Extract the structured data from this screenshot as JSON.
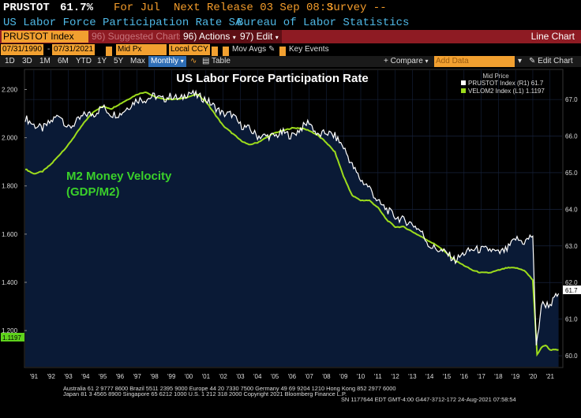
{
  "header": {
    "ticker": "PRUSTOT",
    "last_value": "61.7%",
    "period": "For Jul",
    "next_release": "Next Release 03 Sep 08:3",
    "survey": "Survey --",
    "description": "US Labor Force Participation Rate SA",
    "source": "Bureau of Labor Statistics"
  },
  "toolbar": {
    "ticker_field": "PRUSTOT Index",
    "suggested_charts": "96) Suggested Charts",
    "actions": "96) Actions",
    "edit": "97) Edit",
    "chart_type": "Line Chart"
  },
  "controls": {
    "start_date": "07/31/1990",
    "end_date": "07/31/2021",
    "price_field": "Mid Px",
    "currency": "Local CCY",
    "mov_avgs": "Mov Avgs",
    "key_events": "Key Events"
  },
  "periods": {
    "items": [
      "1D",
      "3D",
      "1M",
      "6M",
      "YTD",
      "1Y",
      "5Y",
      "Max"
    ],
    "frequency": "Monthly",
    "table": "Table",
    "compare": "Compare",
    "add_data_placeholder": "Add Data",
    "edit_chart": "Edit Chart"
  },
  "legend": {
    "header": "Mid Price",
    "entries": [
      {
        "label": "PRUSTOT Index  (R1)  61.7",
        "color": "#ffffff"
      },
      {
        "label": "VELOM2 Index  (L1)    1.1197",
        "color": "#9ddc1c"
      }
    ]
  },
  "annotations": {
    "title": "US Labor Force Participation Rate",
    "green_label_line1": "M2 Money Velocity",
    "green_label_line2": "(GDP/M2)"
  },
  "badges": {
    "right_last": "61.7",
    "left_last": "1.1197"
  },
  "footer": {
    "line1": "Australia 61 2 9777 8600  Brazil 5511 2395 9000  Europe 44 20 7330 7500  Germany 49 69 9204 1210  Hong Kong 852 2977 6000",
    "line2": "Japan 81 3 4565 8900        Singapore 65 6212 1000       U.S. 1 212 318 2000       Copyright 2021 Bloomberg Finance L.P.",
    "line3": "SN 1177644 EDT  GMT-4:00 G447-3712-172 24-Aug-2021 07:58:54"
  },
  "chart_data": {
    "type": "line",
    "title": "US Labor Force Participation Rate",
    "x_tick_labels": [
      "'91",
      "'92",
      "'93",
      "'94",
      "'95",
      "'96",
      "'97",
      "'98",
      "'99",
      "'00",
      "'01",
      "'02",
      "'03",
      "'04",
      "'05",
      "'06",
      "'07",
      "'08",
      "'09",
      "'10",
      "'11",
      "'12",
      "'13",
      "'14",
      "'15",
      "'16",
      "'17",
      "'18",
      "'19",
      "'20",
      "'21"
    ],
    "xlim": [
      1990.5,
      2021.7
    ],
    "y_left": {
      "label": "VELOM2 Index",
      "ylim": [
        1.05,
        2.28
      ],
      "ticks": [
        "1.200",
        "1.400",
        "1.600",
        "1.800",
        "2.000",
        "2.200"
      ]
    },
    "y_right": {
      "label": "PRUSTOT Index",
      "ylim": [
        59.7,
        67.8
      ],
      "ticks": [
        "60.0",
        "61.0",
        "62.0",
        "63.0",
        "64.0",
        "65.0",
        "66.0",
        "67.0"
      ]
    },
    "series": [
      {
        "name": "PRUSTOT Index",
        "axis": "right",
        "color": "#ffffff",
        "points": [
          [
            1990.5,
            66.5
          ],
          [
            1991.0,
            66.3
          ],
          [
            1991.5,
            66.2
          ],
          [
            1992.0,
            66.4
          ],
          [
            1992.5,
            66.6
          ],
          [
            1993.0,
            66.2
          ],
          [
            1993.5,
            66.4
          ],
          [
            1994.0,
            66.6
          ],
          [
            1994.5,
            66.6
          ],
          [
            1995.0,
            66.8
          ],
          [
            1995.5,
            66.6
          ],
          [
            1996.0,
            66.6
          ],
          [
            1996.5,
            66.8
          ],
          [
            1997.0,
            67.0
          ],
          [
            1997.5,
            67.0
          ],
          [
            1998.0,
            67.1
          ],
          [
            1998.5,
            67.0
          ],
          [
            1999.0,
            67.1
          ],
          [
            1999.5,
            67.0
          ],
          [
            2000.0,
            67.2
          ],
          [
            2000.5,
            67.1
          ],
          [
            2001.0,
            67.0
          ],
          [
            2001.5,
            66.8
          ],
          [
            2002.0,
            66.6
          ],
          [
            2002.5,
            66.6
          ],
          [
            2003.0,
            66.3
          ],
          [
            2003.5,
            66.2
          ],
          [
            2004.0,
            66.0
          ],
          [
            2004.5,
            66.0
          ],
          [
            2005.0,
            66.0
          ],
          [
            2005.5,
            66.1
          ],
          [
            2006.0,
            66.0
          ],
          [
            2006.5,
            66.2
          ],
          [
            2007.0,
            66.4
          ],
          [
            2007.5,
            66.0
          ],
          [
            2008.0,
            66.1
          ],
          [
            2008.5,
            66.0
          ],
          [
            2009.0,
            65.7
          ],
          [
            2009.5,
            65.2
          ],
          [
            2010.0,
            64.8
          ],
          [
            2010.5,
            64.6
          ],
          [
            2011.0,
            64.2
          ],
          [
            2011.5,
            64.0
          ],
          [
            2012.0,
            63.8
          ],
          [
            2012.5,
            63.7
          ],
          [
            2013.0,
            63.6
          ],
          [
            2013.5,
            63.4
          ],
          [
            2014.0,
            63.0
          ],
          [
            2014.5,
            62.9
          ],
          [
            2015.0,
            62.8
          ],
          [
            2015.5,
            62.6
          ],
          [
            2016.0,
            62.8
          ],
          [
            2016.5,
            62.9
          ],
          [
            2017.0,
            62.9
          ],
          [
            2017.5,
            62.9
          ],
          [
            2018.0,
            62.8
          ],
          [
            2018.5,
            62.9
          ],
          [
            2019.0,
            63.2
          ],
          [
            2019.5,
            63.1
          ],
          [
            2020.0,
            63.3
          ],
          [
            2020.2,
            60.2
          ],
          [
            2020.5,
            61.4
          ],
          [
            2021.0,
            61.4
          ],
          [
            2021.5,
            61.7
          ]
        ]
      },
      {
        "name": "VELOM2 Index",
        "axis": "left",
        "color": "#9ddc1c",
        "points": [
          [
            1990.5,
            1.87
          ],
          [
            1991.0,
            1.85
          ],
          [
            1991.5,
            1.86
          ],
          [
            1992.0,
            1.89
          ],
          [
            1992.5,
            1.93
          ],
          [
            1993.0,
            1.97
          ],
          [
            1993.5,
            2.02
          ],
          [
            1994.0,
            2.07
          ],
          [
            1994.5,
            2.11
          ],
          [
            1995.0,
            2.13
          ],
          [
            1995.5,
            2.12
          ],
          [
            1996.0,
            2.14
          ],
          [
            1996.5,
            2.16
          ],
          [
            1997.0,
            2.18
          ],
          [
            1997.5,
            2.19
          ],
          [
            1998.0,
            2.17
          ],
          [
            1998.5,
            2.16
          ],
          [
            1999.0,
            2.16
          ],
          [
            1999.5,
            2.16
          ],
          [
            2000.0,
            2.17
          ],
          [
            2000.5,
            2.18
          ],
          [
            2001.0,
            2.15
          ],
          [
            2001.5,
            2.1
          ],
          [
            2002.0,
            2.05
          ],
          [
            2002.5,
            2.02
          ],
          [
            2003.0,
            1.99
          ],
          [
            2003.5,
            1.97
          ],
          [
            2004.0,
            1.98
          ],
          [
            2004.5,
            2.0
          ],
          [
            2005.0,
            2.02
          ],
          [
            2005.5,
            2.03
          ],
          [
            2006.0,
            2.04
          ],
          [
            2006.5,
            2.04
          ],
          [
            2007.0,
            2.03
          ],
          [
            2007.5,
            2.01
          ],
          [
            2008.0,
            1.98
          ],
          [
            2008.5,
            1.94
          ],
          [
            2009.0,
            1.84
          ],
          [
            2009.5,
            1.76
          ],
          [
            2010.0,
            1.74
          ],
          [
            2010.5,
            1.74
          ],
          [
            2011.0,
            1.71
          ],
          [
            2011.5,
            1.66
          ],
          [
            2012.0,
            1.63
          ],
          [
            2012.5,
            1.63
          ],
          [
            2013.0,
            1.61
          ],
          [
            2013.5,
            1.59
          ],
          [
            2014.0,
            1.57
          ],
          [
            2014.5,
            1.55
          ],
          [
            2015.0,
            1.52
          ],
          [
            2015.5,
            1.49
          ],
          [
            2016.0,
            1.47
          ],
          [
            2016.5,
            1.45
          ],
          [
            2017.0,
            1.44
          ],
          [
            2017.5,
            1.44
          ],
          [
            2018.0,
            1.45
          ],
          [
            2018.5,
            1.46
          ],
          [
            2019.0,
            1.46
          ],
          [
            2019.5,
            1.45
          ],
          [
            2020.0,
            1.41
          ],
          [
            2020.25,
            1.1
          ],
          [
            2020.5,
            1.13
          ],
          [
            2020.75,
            1.14
          ],
          [
            2021.0,
            1.12
          ],
          [
            2021.5,
            1.12
          ]
        ]
      }
    ]
  }
}
